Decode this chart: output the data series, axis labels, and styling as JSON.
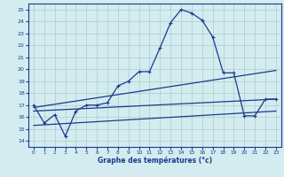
{
  "title": "Graphe des températures (°c)",
  "background_color": "#d4ecf0",
  "grid_color": "#aacccc",
  "line_color": "#1a3a8c",
  "xlim": [
    -0.5,
    23.5
  ],
  "ylim": [
    13.5,
    25.5
  ],
  "xticks": [
    0,
    1,
    2,
    3,
    4,
    5,
    6,
    7,
    8,
    9,
    10,
    11,
    12,
    13,
    14,
    15,
    16,
    17,
    18,
    19,
    20,
    21,
    22,
    23
  ],
  "yticks": [
    14,
    15,
    16,
    17,
    18,
    19,
    20,
    21,
    22,
    23,
    24,
    25
  ],
  "curve1": {
    "x": [
      0,
      1,
      2,
      3,
      4,
      5,
      6,
      7,
      8,
      9,
      10,
      11,
      12,
      13,
      14,
      15,
      16,
      17,
      18,
      19,
      20,
      21,
      22,
      23
    ],
    "y": [
      17.0,
      15.5,
      16.2,
      14.4,
      16.5,
      17.0,
      17.0,
      17.2,
      18.6,
      19.0,
      19.8,
      19.8,
      21.8,
      23.9,
      25.0,
      24.7,
      24.1,
      22.7,
      19.7,
      19.7,
      16.1,
      16.1,
      17.5,
      17.5
    ]
  },
  "curve2": {
    "x": [
      0,
      23
    ],
    "y": [
      16.5,
      17.5
    ]
  },
  "curve3": {
    "x": [
      0,
      23
    ],
    "y": [
      15.3,
      16.5
    ]
  },
  "curve4": {
    "x": [
      0,
      23
    ],
    "y": [
      16.8,
      19.9
    ]
  }
}
